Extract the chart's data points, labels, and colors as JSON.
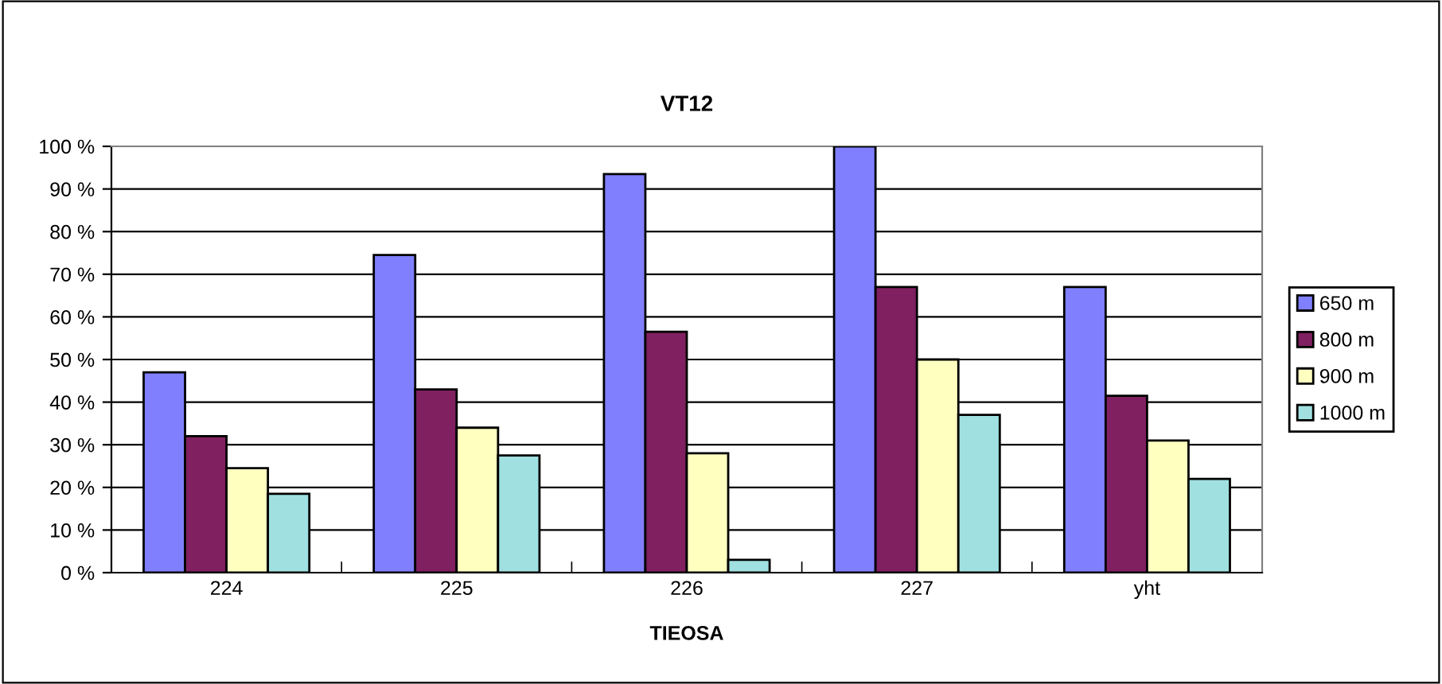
{
  "chart_data": {
    "type": "bar",
    "title": "VT12",
    "xlabel": "TIEOSA",
    "categories": [
      "224",
      "225",
      "226",
      "227",
      "yht"
    ],
    "series": [
      {
        "name": "650 m",
        "color": "#8080ff",
        "values": [
          47,
          74.5,
          93.5,
          100,
          67
        ]
      },
      {
        "name": "800 m",
        "color": "#802060",
        "values": [
          32,
          43,
          56.5,
          67,
          41.5
        ]
      },
      {
        "name": "900 m",
        "color": "#ffffc0",
        "values": [
          24.5,
          34,
          28,
          50,
          31
        ]
      },
      {
        "name": "1000 m",
        "color": "#a0e0e0",
        "values": [
          18.5,
          27.5,
          3,
          37,
          22
        ]
      }
    ],
    "ylim": [
      0,
      100
    ],
    "yticks": [
      {
        "value": 0,
        "label": "0 %"
      },
      {
        "value": 10,
        "label": "10 %"
      },
      {
        "value": 20,
        "label": "20 %"
      },
      {
        "value": 30,
        "label": "30 %"
      },
      {
        "value": 40,
        "label": "40 %"
      },
      {
        "value": 50,
        "label": "50 %"
      },
      {
        "value": 60,
        "label": "60 %"
      },
      {
        "value": 70,
        "label": "70 %"
      },
      {
        "value": 80,
        "label": "80 %"
      },
      {
        "value": 90,
        "label": "90 %"
      },
      {
        "value": 100,
        "label": "100 %"
      }
    ],
    "grid": "y",
    "legend": "right"
  }
}
